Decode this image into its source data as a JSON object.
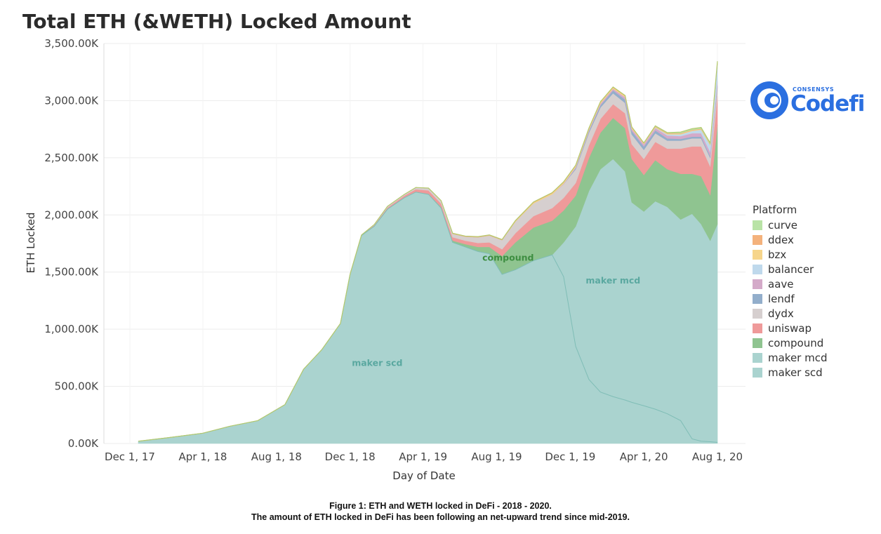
{
  "chart_data": {
    "type": "area",
    "title": "Total ETH (&WETH) Locked Amount",
    "xlabel": "Day of Date",
    "ylabel": "ETH Locked",
    "ylim": [
      0,
      3500
    ],
    "yunit": "K",
    "y_ticks": [
      "0.00K",
      "500.00K",
      "1,000.00K",
      "1,500.00K",
      "2,000.00K",
      "2,500.00K",
      "3,000.00K",
      "3,500.00K"
    ],
    "y_tick_values": [
      0,
      500,
      1000,
      1500,
      2000,
      2500,
      3000,
      3500
    ],
    "x_ticks": [
      "Dec 1, 17",
      "Apr 1, 18",
      "Aug 1, 18",
      "Dec 1, 18",
      "Apr 1, 19",
      "Aug 1, 19",
      "Dec 1, 19",
      "Apr 1, 20",
      "Aug 1, 20"
    ],
    "x_tick_dates": [
      "2017-12-01",
      "2018-04-01",
      "2018-08-01",
      "2018-12-01",
      "2019-04-01",
      "2019-08-01",
      "2019-12-01",
      "2020-04-01",
      "2020-08-01"
    ],
    "x": [
      "2017-12-15",
      "2018-02-01",
      "2018-04-01",
      "2018-05-15",
      "2018-07-01",
      "2018-08-15",
      "2018-09-15",
      "2018-10-15",
      "2018-11-15",
      "2018-12-01",
      "2018-12-20",
      "2019-01-10",
      "2019-02-01",
      "2019-03-01",
      "2019-03-20",
      "2019-04-10",
      "2019-05-01",
      "2019-05-20",
      "2019-06-10",
      "2019-07-01",
      "2019-07-20",
      "2019-08-10",
      "2019-09-01",
      "2019-10-01",
      "2019-11-01",
      "2019-11-20",
      "2019-12-10",
      "2020-01-01",
      "2020-01-20",
      "2020-02-10",
      "2020-03-01",
      "2020-03-12",
      "2020-04-01",
      "2020-04-20",
      "2020-05-10",
      "2020-06-01",
      "2020-06-20",
      "2020-07-05",
      "2020-07-20",
      "2020-08-01"
    ],
    "series": [
      {
        "name": "maker scd",
        "color": "#aad3cf",
        "values": [
          20,
          50,
          90,
          150,
          200,
          340,
          650,
          820,
          1050,
          1480,
          1820,
          1900,
          2050,
          2150,
          2200,
          2180,
          2060,
          1760,
          1720,
          1680,
          1660,
          1480,
          1520,
          1600,
          1650,
          1460,
          850,
          560,
          450,
          410,
          380,
          360,
          330,
          300,
          260,
          200,
          40,
          20,
          15,
          10
        ]
      },
      {
        "name": "maker mcd",
        "color": "#aad3cf",
        "values": [
          0,
          0,
          0,
          0,
          0,
          0,
          0,
          0,
          0,
          0,
          0,
          0,
          0,
          0,
          0,
          0,
          0,
          0,
          0,
          0,
          0,
          0,
          0,
          0,
          0,
          300,
          1050,
          1650,
          1950,
          2080,
          2000,
          1750,
          1700,
          1820,
          1810,
          1760,
          1970,
          1900,
          1760,
          1910
        ]
      },
      {
        "name": "compound",
        "color": "#8fc490",
        "values": [
          0,
          0,
          0,
          0,
          0,
          0,
          0,
          0,
          0,
          0,
          0,
          0,
          0,
          0,
          0,
          5,
          10,
          15,
          25,
          40,
          60,
          160,
          240,
          290,
          300,
          280,
          270,
          290,
          320,
          360,
          380,
          380,
          320,
          360,
          330,
          400,
          350,
          420,
          400,
          870
        ]
      },
      {
        "name": "uniswap",
        "color": "#ef9a9a",
        "values": [
          0,
          0,
          0,
          0,
          0,
          0,
          0,
          0,
          0,
          0,
          5,
          10,
          15,
          20,
          25,
          30,
          30,
          30,
          30,
          35,
          40,
          60,
          80,
          100,
          110,
          110,
          110,
          110,
          120,
          120,
          130,
          130,
          140,
          160,
          180,
          220,
          240,
          260,
          250,
          250
        ]
      },
      {
        "name": "dydx",
        "color": "#d6cfcf",
        "values": [
          0,
          0,
          0,
          0,
          0,
          0,
          0,
          0,
          0,
          0,
          0,
          5,
          10,
          10,
          15,
          20,
          25,
          30,
          35,
          50,
          60,
          80,
          100,
          110,
          120,
          120,
          120,
          110,
          100,
          95,
          90,
          85,
          80,
          75,
          70,
          70,
          70,
          70,
          75,
          75
        ]
      },
      {
        "name": "lendf",
        "color": "#93aecb",
        "values": [
          0,
          0,
          0,
          0,
          0,
          0,
          0,
          0,
          0,
          0,
          0,
          0,
          0,
          0,
          0,
          0,
          0,
          0,
          0,
          0,
          0,
          0,
          0,
          0,
          0,
          0,
          10,
          15,
          20,
          25,
          30,
          30,
          30,
          25,
          20,
          15,
          15,
          15,
          15,
          15
        ]
      },
      {
        "name": "aave",
        "color": "#d4aac9",
        "values": [
          0,
          0,
          0,
          0,
          0,
          0,
          0,
          0,
          0,
          0,
          0,
          0,
          0,
          0,
          0,
          0,
          0,
          0,
          0,
          0,
          0,
          0,
          0,
          0,
          0,
          5,
          10,
          10,
          15,
          15,
          20,
          20,
          20,
          20,
          25,
          25,
          30,
          30,
          35,
          40
        ]
      },
      {
        "name": "balancer",
        "color": "#bfd9ec",
        "values": [
          0,
          0,
          0,
          0,
          0,
          0,
          0,
          0,
          0,
          0,
          0,
          0,
          0,
          0,
          0,
          0,
          0,
          0,
          0,
          0,
          0,
          0,
          0,
          0,
          0,
          0,
          0,
          0,
          0,
          0,
          0,
          0,
          0,
          5,
          10,
          15,
          20,
          30,
          60,
          150
        ]
      },
      {
        "name": "bzx",
        "color": "#f6d58b",
        "values": [
          0,
          0,
          0,
          0,
          0,
          0,
          0,
          0,
          0,
          0,
          0,
          0,
          0,
          0,
          0,
          0,
          0,
          0,
          0,
          0,
          0,
          0,
          5,
          8,
          10,
          10,
          10,
          10,
          10,
          10,
          10,
          10,
          5,
          5,
          5,
          5,
          5,
          5,
          5,
          5
        ]
      },
      {
        "name": "ddex",
        "color": "#f4b27c",
        "values": [
          0,
          0,
          0,
          0,
          0,
          0,
          0,
          0,
          0,
          0,
          0,
          0,
          0,
          0,
          0,
          0,
          0,
          5,
          5,
          5,
          5,
          5,
          5,
          5,
          5,
          5,
          5,
          5,
          5,
          5,
          5,
          5,
          5,
          5,
          5,
          5,
          5,
          5,
          5,
          5
        ]
      },
      {
        "name": "curve",
        "color": "#b9e3a6",
        "values": [
          0,
          0,
          0,
          0,
          0,
          0,
          0,
          0,
          0,
          0,
          0,
          0,
          0,
          0,
          0,
          0,
          0,
          0,
          0,
          0,
          0,
          0,
          0,
          0,
          0,
          0,
          0,
          0,
          0,
          0,
          0,
          0,
          0,
          5,
          5,
          10,
          10,
          10,
          10,
          15
        ]
      }
    ],
    "annotations": [
      {
        "text": "compound",
        "color": "#3e8e41",
        "date": "2019-08-20",
        "value": 1600
      },
      {
        "text": "maker mcd",
        "color": "#5aa8a0",
        "date": "2020-02-10",
        "value": 1400
      },
      {
        "text": "maker scd",
        "color": "#5aa8a0",
        "date": "2019-01-15",
        "value": 680
      }
    ],
    "legend": {
      "title": "Platform",
      "placement": "right",
      "entries": [
        {
          "label": "curve",
          "color": "#b9e3a6"
        },
        {
          "label": "ddex",
          "color": "#f4b27c"
        },
        {
          "label": "bzx",
          "color": "#f6d58b"
        },
        {
          "label": "balancer",
          "color": "#bfd9ec"
        },
        {
          "label": "aave",
          "color": "#d4aac9"
        },
        {
          "label": "lendf",
          "color": "#93aecb"
        },
        {
          "label": "dydx",
          "color": "#d6cfcf"
        },
        {
          "label": "uniswap",
          "color": "#ef9a9a"
        },
        {
          "label": "compound",
          "color": "#8fc490"
        },
        {
          "label": "maker mcd",
          "color": "#aad3cf"
        },
        {
          "label": "maker scd",
          "color": "#aad3cf"
        }
      ]
    },
    "grid": true
  },
  "logo": {
    "small": "CONSENSYS",
    "name": "Codefi",
    "icon": "codefi-logo-icon"
  },
  "caption": {
    "line1": "Figure 1: ETH and WETH locked in DeFi - 2018 - 2020.",
    "line2": "The amount of ETH locked in DeFi has been following an net-upward trend since mid-2019."
  }
}
